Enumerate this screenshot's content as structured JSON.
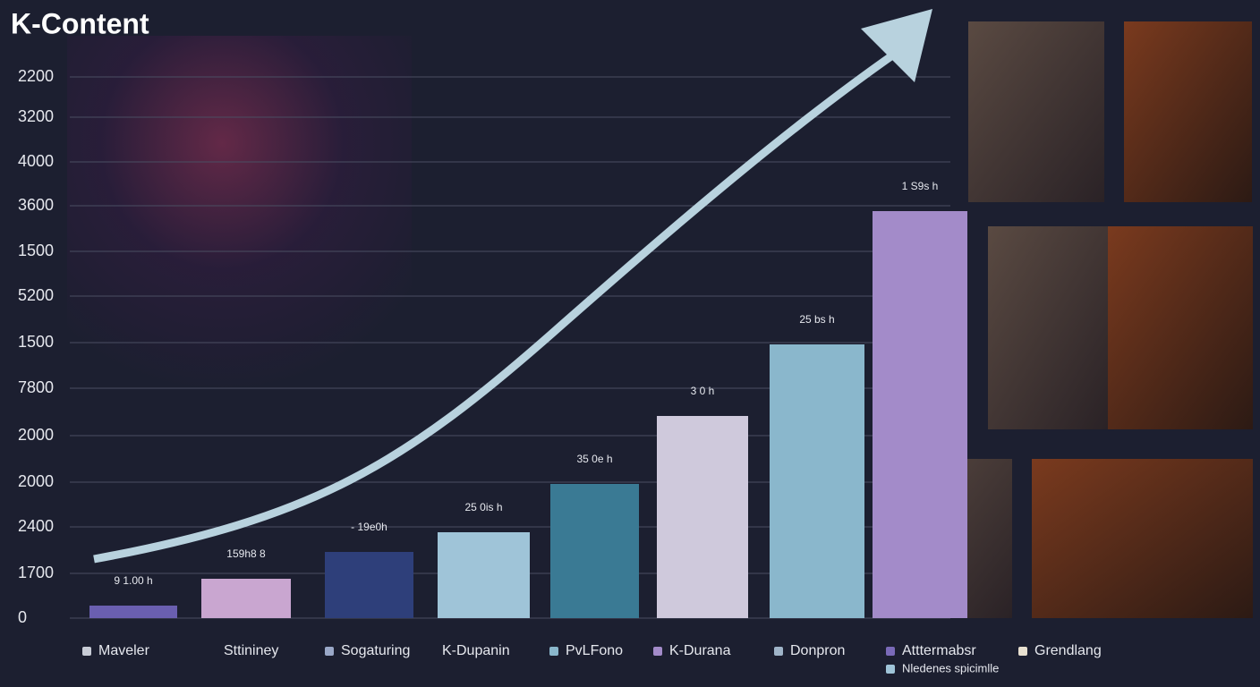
{
  "title": "K-Content",
  "y_axis_labels": [
    "2200",
    "3200",
    "4000",
    "3600",
    "1500",
    "5200",
    "1500",
    "7800",
    "2000",
    "2000",
    "2400",
    "1700",
    "0"
  ],
  "bars": [
    {
      "label": "9 1.00 h",
      "color": "#6a5fb0"
    },
    {
      "label": "159h8 8",
      "color": "#c9a6d0"
    },
    {
      "label": "- 19e0h",
      "color": "#2e3f7a"
    },
    {
      "label": "25 0is h",
      "color": "#9fc4d8"
    },
    {
      "label": "35 0e h",
      "color": "#3a7a94"
    },
    {
      "label": "3 0 h",
      "color": "#cfc9dc"
    },
    {
      "label": "25 bs h",
      "color": "#8ab7cc"
    },
    {
      "label": "1 S9s h",
      "color": "#a38bc9"
    }
  ],
  "legend": [
    {
      "name": "Maveler",
      "color": "#c8ccd6"
    },
    {
      "name": "Sttininey",
      "color": null
    },
    {
      "name": "Sogaturing",
      "color": "#9aa8c8"
    },
    {
      "name": "K-Dupanin",
      "color": null
    },
    {
      "name": "PvLFono",
      "color": "#8ab7cc"
    },
    {
      "name": "K-Durana",
      "color": "#a38bc9"
    },
    {
      "name": "Donpron",
      "color": "#9fb4c8"
    },
    {
      "name": "Atttermabsr",
      "color": "#7a6ab8"
    },
    {
      "name": "Grendlang",
      "color": "#e8e0d0"
    },
    {
      "name": "Nledenes spicimlle",
      "color": "#9fc4d8"
    }
  ]
}
